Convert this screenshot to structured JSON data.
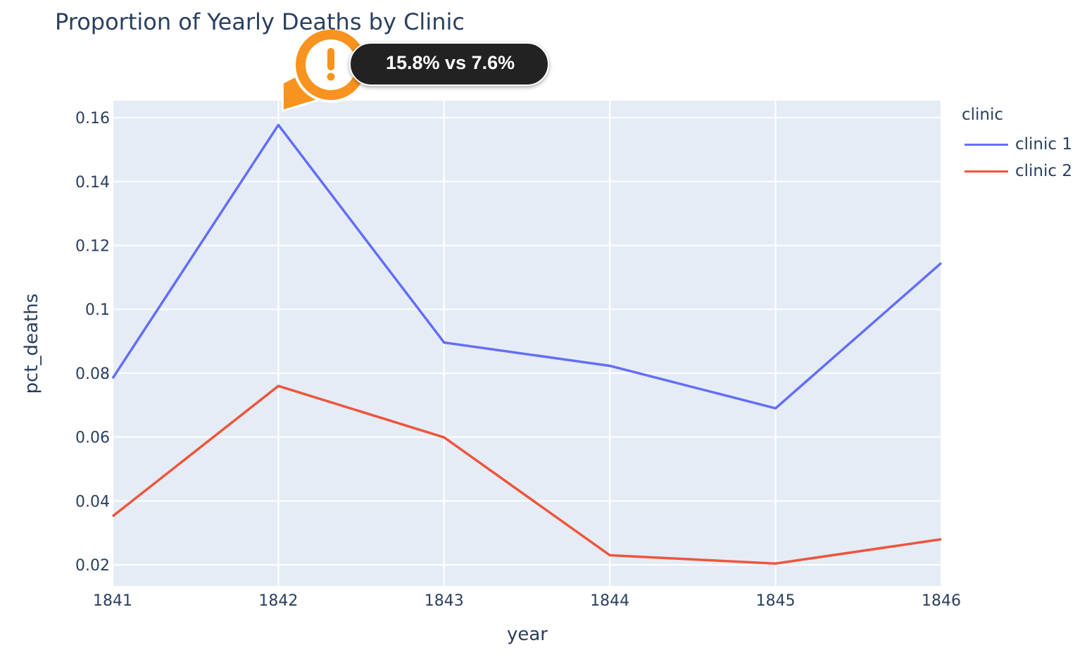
{
  "chart_data": {
    "type": "line",
    "title": "Proportion of Yearly Deaths by Clinic",
    "xlabel": "year",
    "ylabel": "pct_deaths",
    "x": [
      1841,
      1842,
      1843,
      1844,
      1845,
      1846
    ],
    "xlim": [
      1841,
      1846
    ],
    "ylim": [
      0.0134,
      0.1653
    ],
    "yticks": [
      0.02,
      0.04,
      0.06,
      0.08,
      0.1,
      0.12,
      0.14,
      0.16
    ],
    "ytick_labels": [
      "0.02",
      "0.04",
      "0.06",
      "0.08",
      "0.1",
      "0.12",
      "0.14",
      "0.16"
    ],
    "xtick_labels": [
      "1841",
      "1842",
      "1843",
      "1844",
      "1845",
      "1846"
    ],
    "grid": true,
    "legend_title": "clinic",
    "legend_position": "right",
    "series": [
      {
        "name": "clinic 1",
        "color": "#636efa",
        "values": [
          0.0784,
          0.1577,
          0.0896,
          0.0823,
          0.069,
          0.1145
        ]
      },
      {
        "name": "clinic 2",
        "color": "#ef553b",
        "values": [
          0.0352,
          0.076,
          0.0599,
          0.023,
          0.0204,
          0.028
        ]
      }
    ],
    "annotation": {
      "text": "15.8% vs 7.6%",
      "x": 1842,
      "y": 0.1577,
      "icon": "warning-exclamation-icon",
      "icon_color": "#f7931e"
    }
  },
  "colors": {
    "plot_bg": "#e5ecf6",
    "grid": "#ffffff",
    "text": "#2a3f5f"
  }
}
